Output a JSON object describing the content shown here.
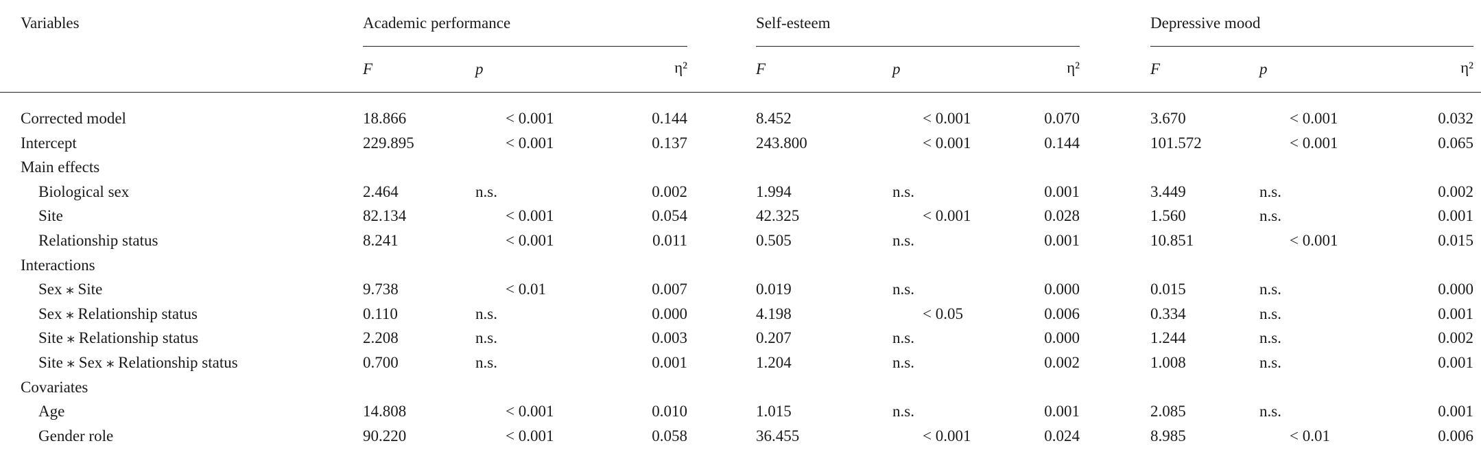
{
  "header": {
    "variables": "Variables",
    "groups": [
      "Academic performance",
      "Self-esteem",
      "Depressive mood"
    ],
    "columns": [
      "F",
      "p",
      "η²"
    ]
  },
  "rows": [
    {
      "label": "Corrected model",
      "cells": [
        "18.866",
        "< 0.001",
        "0.144",
        "8.452",
        "< 0.001",
        "0.070",
        "3.670",
        "< 0.001",
        "0.032"
      ]
    },
    {
      "label": "Intercept",
      "cells": [
        "229.895",
        "< 0.001",
        "0.137",
        "243.800",
        "< 0.001",
        "0.144",
        "101.572",
        "< 0.001",
        "0.065"
      ]
    }
  ],
  "sections": [
    {
      "title": "Main effects",
      "rows": [
        {
          "label": "Biological sex",
          "cells": [
            "2.464",
            "n.s.",
            "0.002",
            "1.994",
            "n.s.",
            "0.001",
            "3.449",
            "n.s.",
            "0.002"
          ]
        },
        {
          "label": "Site",
          "cells": [
            "82.134",
            "< 0.001",
            "0.054",
            "42.325",
            "< 0.001",
            "0.028",
            "1.560",
            "n.s.",
            "0.001"
          ]
        },
        {
          "label": "Relationship status",
          "cells": [
            "8.241",
            "< 0.001",
            "0.011",
            "0.505",
            "n.s.",
            "0.001",
            "10.851",
            "< 0.001",
            "0.015"
          ]
        }
      ]
    },
    {
      "title": "Interactions",
      "rows": [
        {
          "label": "Sex ⁎ Site",
          "cells": [
            "9.738",
            "< 0.01",
            "0.007",
            "0.019",
            "n.s.",
            "0.000",
            "0.015",
            "n.s.",
            "0.000"
          ]
        },
        {
          "label": "Sex ⁎ Relationship status",
          "cells": [
            "0.110",
            "n.s.",
            "0.000",
            "4.198",
            "< 0.05",
            "0.006",
            "0.334",
            "n.s.",
            "0.001"
          ]
        },
        {
          "label": "Site ⁎ Relationship status",
          "cells": [
            "2.208",
            "n.s.",
            "0.003",
            "0.207",
            "n.s.",
            "0.000",
            "1.244",
            "n.s.",
            "0.002"
          ]
        },
        {
          "label": "Site ⁎ Sex ⁎ Relationship status",
          "cells": [
            "0.700",
            "n.s.",
            "0.001",
            "1.204",
            "n.s.",
            "0.002",
            "1.008",
            "n.s.",
            "0.001"
          ]
        }
      ]
    },
    {
      "title": "Covariates",
      "rows": [
        {
          "label": "Age",
          "cells": [
            "14.808",
            "< 0.001",
            "0.010",
            "1.015",
            "n.s.",
            "0.001",
            "2.085",
            "n.s.",
            "0.001"
          ]
        },
        {
          "label": "Gender role",
          "cells": [
            "90.220",
            "< 0.001",
            "0.058",
            "36.455",
            "< 0.001",
            "0.024",
            "8.985",
            "< 0.01",
            "0.006"
          ]
        }
      ]
    }
  ]
}
